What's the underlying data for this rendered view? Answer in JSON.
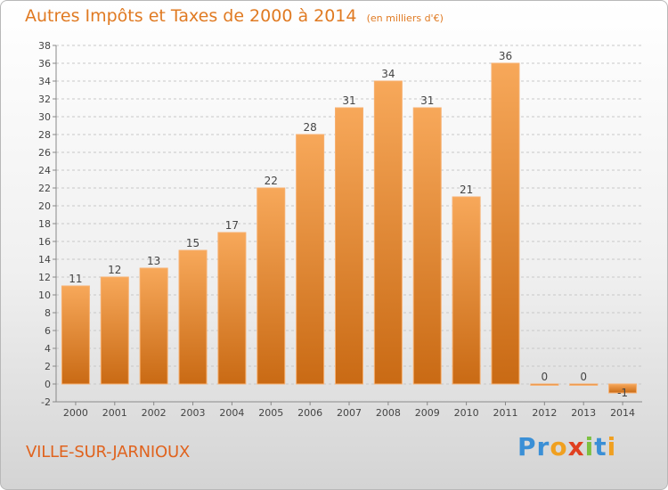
{
  "chart_data": {
    "type": "bar",
    "title": "Autres Impôts et Taxes de 2000 à 2014",
    "subtitle": "(en milliers d'€)",
    "categories": [
      "2000",
      "2001",
      "2002",
      "2003",
      "2004",
      "2005",
      "2006",
      "2007",
      "2008",
      "2009",
      "2010",
      "2011",
      "2012",
      "2013",
      "2014"
    ],
    "values": [
      11,
      12,
      13,
      15,
      17,
      22,
      28,
      31,
      34,
      31,
      21,
      36,
      0,
      0,
      -1
    ],
    "data_labels": [
      "11",
      "12",
      "13",
      "15",
      "17",
      "22",
      "28",
      "31",
      "34",
      "31",
      "21",
      "36",
      "0",
      "0",
      "-1"
    ],
    "ylim": [
      -2,
      38
    ],
    "yticks": [
      -2,
      0,
      2,
      4,
      6,
      8,
      10,
      12,
      14,
      16,
      18,
      20,
      22,
      24,
      26,
      28,
      30,
      32,
      34,
      36,
      38
    ],
    "grid": "horizontal dashed",
    "bar_color": "#f0922f"
  },
  "footer": {
    "label": "VILLE-SUR-JARNIOUX"
  },
  "brand": {
    "letters": [
      "P",
      "r",
      "o",
      "x",
      "i",
      "t",
      "i"
    ],
    "colors": [
      "#3a8fd6",
      "#3a8fd6",
      "#f0a020",
      "#e04020",
      "#7cc040",
      "#3a8fd6",
      "#f0a020"
    ]
  }
}
